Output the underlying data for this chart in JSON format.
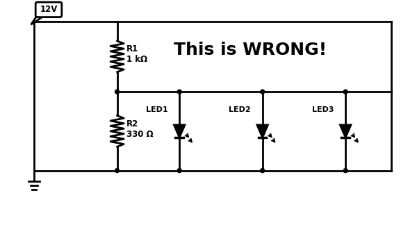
{
  "bg_color": "#ffffff",
  "line_color": "#000000",
  "line_width": 2.0,
  "title_text": "This is WRONG!",
  "title_fontsize": 18,
  "r1_label": "R1\n1 kΩ",
  "r2_label": "R2\n330 Ω",
  "led_labels": [
    "LED1",
    "LED2",
    "LED3"
  ],
  "supply_label": "12V",
  "figsize": [
    6.0,
    3.24
  ],
  "dpi": 100
}
